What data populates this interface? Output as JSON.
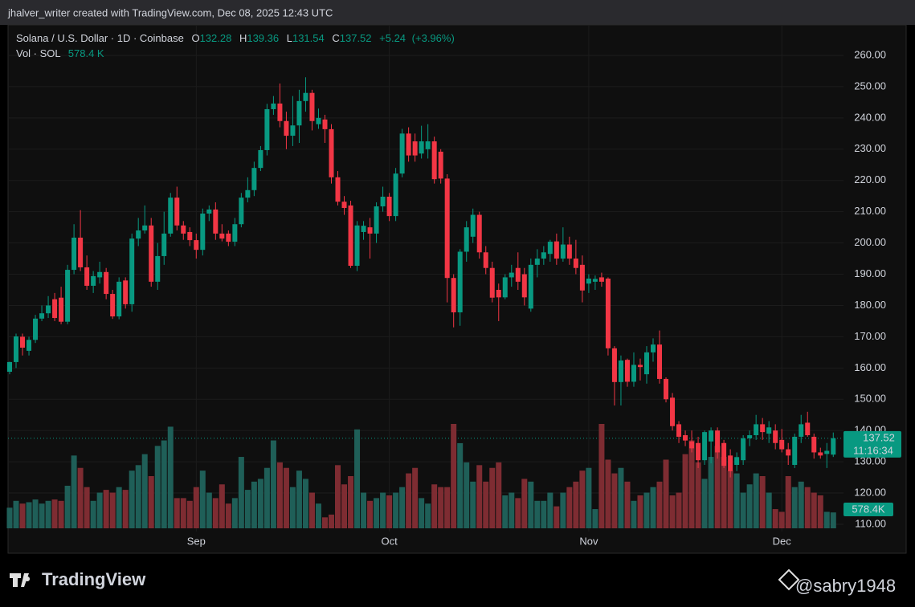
{
  "header": {
    "credit": "jhalver_writer created with TradingView.com, Dec 08, 2025 12:43 UTC"
  },
  "footer": {
    "brand": "TradingView",
    "watermark": "@sabry1948"
  },
  "chart_data": {
    "type": "candlestick",
    "title": "Solana / U.S. Dollar · 1D · Coinbase",
    "ohlc_labels": [
      "O",
      "H",
      "L",
      "C"
    ],
    "change": {
      "value": 5.24,
      "label": "+5.24"
    },
    "change_pct": {
      "value": 3.96,
      "label": "(+3.96%)"
    },
    "countdown": "11:16:34",
    "up_color": "#089981",
    "down_color": "#f23645",
    "volume_up_color": "#1f5f58",
    "volume_down_color": "#7e2c32",
    "grid": true,
    "ylim": [
      100.75,
      269.76
    ],
    "yticks": [
      {
        "value": 110,
        "label": "110.00"
      },
      {
        "value": 120,
        "label": "120.00"
      },
      {
        "value": 130,
        "label": "130.00"
      },
      {
        "value": 140,
        "label": "140.00"
      },
      {
        "value": 150,
        "label": "150.00"
      },
      {
        "value": 160,
        "label": "160.00"
      },
      {
        "value": 170,
        "label": "170.00"
      },
      {
        "value": 180,
        "label": "180.00"
      },
      {
        "value": 190,
        "label": "190.00"
      },
      {
        "value": 200,
        "label": "200.00"
      },
      {
        "value": 210,
        "label": "210.00"
      },
      {
        "value": 220,
        "label": "220.00"
      },
      {
        "value": 230,
        "label": "230.00"
      },
      {
        "value": 240,
        "label": "240.00"
      },
      {
        "value": 250,
        "label": "250.00"
      },
      {
        "value": 260,
        "label": "260.00"
      }
    ],
    "categories": [
      null,
      null,
      null,
      null,
      null,
      null,
      null,
      null,
      null,
      null,
      null,
      null,
      null,
      null,
      null,
      null,
      null,
      null,
      null,
      null,
      null,
      null,
      null,
      null,
      null,
      null,
      null,
      null,
      null,
      "Sep",
      null,
      null,
      null,
      null,
      null,
      null,
      null,
      null,
      null,
      null,
      null,
      null,
      null,
      null,
      null,
      null,
      null,
      null,
      null,
      null,
      null,
      null,
      null,
      null,
      null,
      null,
      null,
      null,
      null,
      "Oct",
      null,
      null,
      null,
      null,
      null,
      null,
      null,
      null,
      null,
      null,
      null,
      null,
      null,
      null,
      null,
      null,
      null,
      null,
      null,
      null,
      null,
      null,
      null,
      null,
      null,
      null,
      null,
      null,
      null,
      null,
      "Nov",
      null,
      null,
      null,
      null,
      null,
      null,
      null,
      null,
      null,
      null,
      null,
      null,
      null,
      null,
      null,
      null,
      null,
      null,
      null,
      null,
      null,
      null,
      null,
      null,
      null,
      null,
      null,
      null,
      null,
      "Dec",
      null,
      null,
      null,
      null,
      null,
      null,
      null,
      null
    ],
    "ohlc": [
      [
        158.8,
        162,
        158,
        161.9
      ],
      [
        161.9,
        171,
        160,
        170.1
      ],
      [
        170,
        171,
        164,
        166.5
      ],
      [
        165.5,
        170,
        164,
        169
      ],
      [
        169,
        177,
        168,
        175.8
      ],
      [
        175.8,
        180,
        175,
        177.5
      ],
      [
        177.5,
        183,
        176,
        180
      ],
      [
        182,
        184,
        175,
        176
      ],
      [
        182.5,
        186,
        174,
        174.8
      ],
      [
        174.8,
        193,
        174,
        191.4
      ],
      [
        191.4,
        206,
        190,
        201.7
      ],
      [
        201.7,
        210.5,
        191,
        192.2
      ],
      [
        192.2,
        196,
        185,
        186.3
      ],
      [
        186.3,
        191,
        184,
        189.4
      ],
      [
        189,
        194,
        187,
        190.7
      ],
      [
        190.7,
        192,
        182,
        183.7
      ],
      [
        183.7,
        185,
        175.7,
        176.5
      ],
      [
        176.5,
        189,
        175.6,
        187.6
      ],
      [
        188,
        189,
        179,
        180.4
      ],
      [
        180.4,
        203,
        178,
        201.4
      ],
      [
        201.4,
        208,
        199,
        204
      ],
      [
        204,
        212,
        203,
        205.6
      ],
      [
        205.6,
        208,
        186,
        187.6
      ],
      [
        187.6,
        200,
        185,
        195.8
      ],
      [
        195.8,
        210,
        193,
        203
      ],
      [
        203,
        216,
        202,
        214.5
      ],
      [
        214.5,
        218,
        204,
        205.6
      ],
      [
        205.6,
        207,
        201,
        203
      ],
      [
        203.5,
        205,
        199,
        200.9
      ],
      [
        200.9,
        203,
        195,
        197.8
      ],
      [
        197.8,
        211,
        196,
        209.4
      ],
      [
        209.4,
        212,
        207,
        210.7
      ],
      [
        210.7,
        213,
        201,
        203
      ],
      [
        203,
        206,
        200.5,
        201.4
      ],
      [
        203,
        204,
        199,
        200.4
      ],
      [
        200.4,
        208,
        199,
        206
      ],
      [
        206,
        216,
        205,
        214.5
      ],
      [
        214.5,
        221,
        213,
        216.9
      ],
      [
        216.9,
        226,
        215,
        224
      ],
      [
        224,
        231,
        223,
        229.7
      ],
      [
        229.7,
        244.5,
        228,
        242.8
      ],
      [
        242.8,
        247,
        241,
        244.6
      ],
      [
        244.6,
        251,
        237,
        239
      ],
      [
        239,
        242,
        230,
        234.3
      ],
      [
        234.3,
        247,
        231,
        237.6
      ],
      [
        237.6,
        249,
        232,
        245.4
      ],
      [
        245.4,
        253,
        242,
        248
      ],
      [
        248,
        249,
        236,
        239
      ],
      [
        238,
        243,
        236.5,
        240
      ],
      [
        239.5,
        241,
        232,
        236.4
      ],
      [
        236.4,
        238,
        219,
        221
      ],
      [
        221,
        223,
        212,
        213.2
      ],
      [
        213.2,
        215,
        209,
        211.2
      ],
      [
        212,
        213.5,
        192,
        192.7
      ],
      [
        192.7,
        207,
        191,
        205.6
      ],
      [
        203.5,
        207,
        201,
        205.5
      ],
      [
        205,
        208,
        195,
        203
      ],
      [
        203,
        213,
        200,
        211.7
      ],
      [
        211.7,
        218,
        210,
        214.8
      ],
      [
        214.8,
        216,
        207,
        208.6
      ],
      [
        208.6,
        224,
        207,
        222.2
      ],
      [
        222.2,
        236.5,
        221,
        235
      ],
      [
        235,
        237,
        226,
        228
      ],
      [
        232.5,
        235,
        226,
        228
      ],
      [
        228.6,
        237.5,
        227,
        232.5
      ],
      [
        230,
        238,
        227,
        232.5
      ],
      [
        232.5,
        234,
        219,
        220.4
      ],
      [
        229.2,
        230,
        219,
        220.6
      ],
      [
        220.6,
        222,
        181,
        188.8
      ],
      [
        188.8,
        190,
        173,
        177.8
      ],
      [
        177.8,
        198,
        173.5,
        197.2
      ],
      [
        197.2,
        207,
        194,
        205
      ],
      [
        202,
        211,
        200,
        209
      ],
      [
        209,
        210,
        195,
        197
      ],
      [
        197,
        199,
        190,
        192
      ],
      [
        192,
        194,
        181,
        182.5
      ],
      [
        185,
        187,
        175,
        182.6
      ],
      [
        182.6,
        190,
        182,
        189
      ],
      [
        189,
        193,
        186,
        190.5
      ],
      [
        192,
        197,
        185,
        187.6
      ],
      [
        190,
        192,
        180,
        182.6
      ],
      [
        179,
        195,
        178,
        193
      ],
      [
        193,
        198,
        189,
        195
      ],
      [
        195,
        199,
        193,
        197
      ],
      [
        196.5,
        201,
        194,
        200.4
      ],
      [
        200.5,
        203,
        193,
        195
      ],
      [
        195,
        205,
        194,
        199.5
      ],
      [
        199.5,
        202,
        193,
        195
      ],
      [
        195,
        201,
        190,
        192
      ],
      [
        193,
        196,
        181,
        184.8
      ],
      [
        187,
        190,
        184,
        188.6
      ],
      [
        187.6,
        189.6,
        185,
        188.5
      ],
      [
        189,
        190.5,
        186,
        187.6
      ],
      [
        188.6,
        189,
        164,
        166.3
      ],
      [
        166.3,
        167,
        148,
        155.5
      ],
      [
        155.5,
        164,
        148,
        162.4
      ],
      [
        162.6,
        163,
        154,
        155.6
      ],
      [
        155.6,
        165,
        154,
        161
      ],
      [
        161,
        163,
        156,
        160.3
      ],
      [
        158,
        167,
        155,
        165
      ],
      [
        165,
        169.5,
        162,
        167.5
      ],
      [
        167.5,
        172,
        155,
        156.5
      ],
      [
        156.5,
        157,
        149,
        150
      ],
      [
        150.5,
        152,
        140,
        141.4
      ],
      [
        142,
        143,
        136,
        138
      ],
      [
        138.5,
        140,
        135,
        136.8
      ],
      [
        136.5,
        140,
        133,
        134.3
      ],
      [
        136,
        138,
        128,
        130.5
      ],
      [
        130.5,
        140,
        129,
        139.5
      ],
      [
        136.5,
        141,
        129.5,
        140
      ],
      [
        140,
        141,
        131,
        133
      ],
      [
        136,
        137,
        128,
        128.7
      ],
      [
        132,
        134,
        125,
        127
      ],
      [
        129,
        133,
        127,
        131.5
      ],
      [
        130.5,
        138.5,
        129,
        137.5
      ],
      [
        137.5,
        140,
        135,
        138.5
      ],
      [
        138.5,
        145,
        137,
        142
      ],
      [
        142,
        144,
        137,
        139.5
      ],
      [
        139,
        143,
        136,
        141
      ],
      [
        140,
        142,
        134,
        136
      ],
      [
        137,
        140.5,
        133,
        134
      ],
      [
        134,
        136,
        129,
        132
      ],
      [
        129,
        139,
        128,
        138
      ],
      [
        138,
        145,
        136,
        142
      ],
      [
        142.5,
        146,
        138,
        138.5
      ],
      [
        138,
        139,
        131,
        133
      ],
      [
        133,
        134.5,
        131,
        132
      ],
      [
        132.5,
        136,
        128,
        133.5
      ],
      [
        132.28,
        139.36,
        131.54,
        137.52
      ]
    ],
    "volume": {
      "name": "Vol · SOL",
      "header_label": "578.4 K",
      "tag_label": "578.4K",
      "values": [
        750,
        1000,
        900,
        950,
        1050,
        900,
        1000,
        1050,
        1000,
        1550,
        2650,
        2200,
        1500,
        1000,
        1300,
        1400,
        1300,
        1500,
        1400,
        2100,
        2300,
        2700,
        1900,
        3000,
        3200,
        3700,
        1100,
        1100,
        1000,
        1500,
        2100,
        1300,
        1100,
        1600,
        900,
        1100,
        2600,
        1400,
        1700,
        1800,
        2200,
        3200,
        2400,
        2200,
        1500,
        2100,
        1800,
        1300,
        900,
        400,
        500,
        2300,
        1600,
        1900,
        3600,
        1300,
        1000,
        1100,
        1300,
        1200,
        1300,
        1500,
        2000,
        2200,
        1100,
        900,
        1600,
        1500,
        1500,
        3800,
        3100,
        2400,
        1700,
        2300,
        1700,
        2200,
        2400,
        1200,
        1300,
        1100,
        1800,
        1700,
        1000,
        1000,
        1300,
        800,
        1300,
        1500,
        1700,
        2100,
        2200,
        700,
        3800,
        2500,
        2000,
        2200,
        1700,
        1000,
        1200,
        1300,
        1500,
        1700,
        2500,
        1200,
        1300,
        2700,
        3200,
        2400,
        1800,
        2600,
        3000,
        2600,
        2100,
        2000,
        1300,
        1600,
        2000,
        1900,
        1300,
        700,
        600,
        1900,
        1500,
        1700,
        1500,
        1300,
        1200,
        600,
        578.4
      ]
    }
  }
}
